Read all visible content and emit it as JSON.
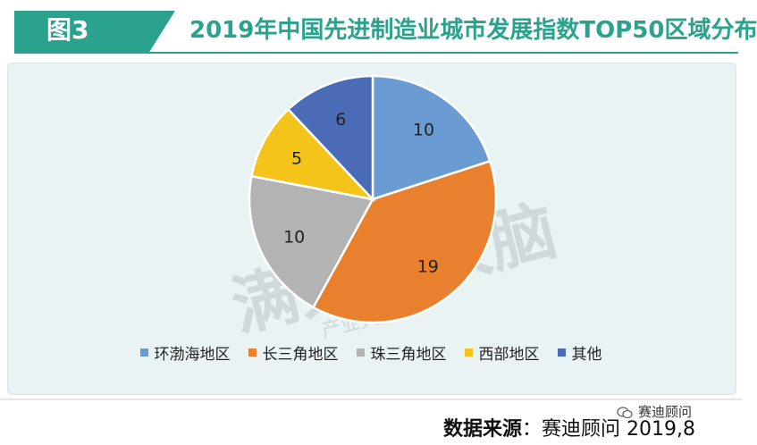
{
  "header": {
    "badge": "图3",
    "title": "2019年中国先进制造业城市发展指数TOP50区域分布"
  },
  "watermark": {
    "text": "满天星大脑",
    "small": "产业大脑"
  },
  "chart_data": {
    "type": "pie",
    "title": "",
    "slices": [
      {
        "label": "环渤海地区",
        "value": 10,
        "color": "#6a9bd2"
      },
      {
        "label": "长三角地区",
        "value": 19,
        "color": "#e8802e"
      },
      {
        "label": "珠三角地区",
        "value": 10,
        "color": "#b3b3b3"
      },
      {
        "label": "西部地区",
        "value": 5,
        "color": "#f5c41a"
      },
      {
        "label": "其他",
        "value": 6,
        "color": "#4a6bb5"
      }
    ],
    "legend_position": "bottom"
  },
  "footer": {
    "wechat": "赛迪顾问",
    "source_label": "数据来源",
    "source_value": "：赛迪顾问 2019,8"
  }
}
